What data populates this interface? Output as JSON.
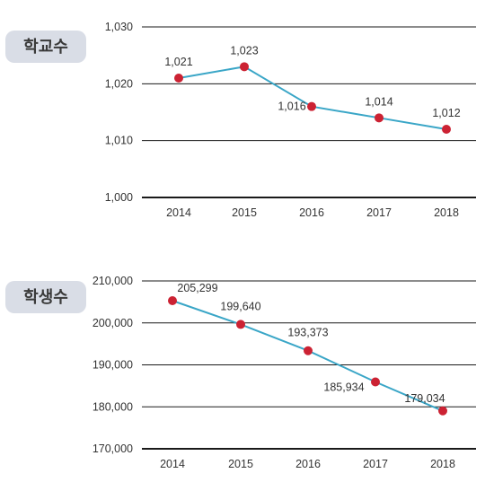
{
  "colors": {
    "line": "#3aa6c7",
    "point": "#cc2233",
    "grid": "#1a1a1a",
    "badge": "#d9dde6",
    "text": "#333333"
  },
  "chart_data": [
    {
      "type": "line",
      "title": "학교수",
      "categories": [
        "2014",
        "2015",
        "2016",
        "2017",
        "2018"
      ],
      "values": [
        1021,
        1023,
        1016,
        1014,
        1012
      ],
      "value_labels": [
        "1,021",
        "1,023",
        "1,016",
        "1,014",
        "1,012"
      ],
      "yticks": [
        1000,
        1010,
        1020,
        1030
      ],
      "ytick_labels": [
        "1,000",
        "1,010",
        "1,020",
        "1,030"
      ],
      "ylim": [
        1000,
        1030
      ],
      "grid": true
    },
    {
      "type": "line",
      "title": "학생수",
      "categories": [
        "2014",
        "2015",
        "2016",
        "2017",
        "2018"
      ],
      "values": [
        205299,
        199640,
        193373,
        185934,
        179034
      ],
      "value_labels": [
        "205,299",
        "199,640",
        "193,373",
        "185,934",
        "179,034"
      ],
      "yticks": [
        170000,
        180000,
        190000,
        200000,
        210000
      ],
      "ytick_labels": [
        "170,000",
        "180,000",
        "190,000",
        "200,000",
        "210,000"
      ],
      "ylim": [
        170000,
        210000
      ],
      "grid": true
    }
  ]
}
